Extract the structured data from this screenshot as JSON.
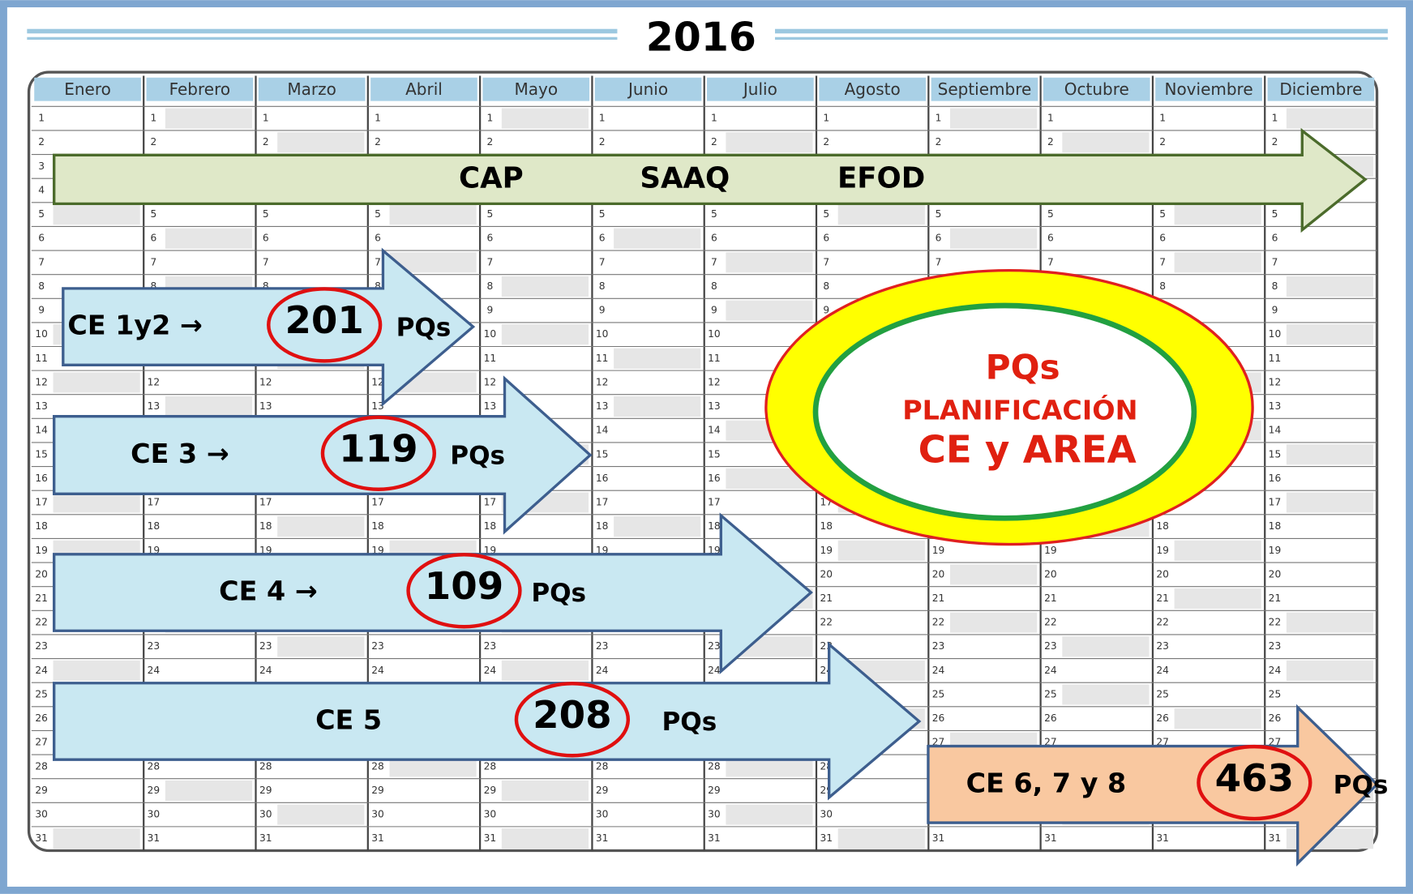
{
  "title": "2016",
  "months": [
    "Enero",
    "Febrero",
    "Marzo",
    "Abril",
    "Mayo",
    "Junio",
    "Julio",
    "Agosto",
    "Septiembre",
    "Octubre",
    "Noviembre",
    "Diciembre"
  ],
  "days": [
    1,
    2,
    3,
    4,
    5,
    6,
    7,
    8,
    9,
    10,
    11,
    12,
    13,
    14,
    15,
    16,
    17,
    18,
    19,
    20,
    21,
    22,
    23,
    24,
    25,
    26,
    27,
    28,
    29,
    30,
    31
  ],
  "top_arrow": {
    "labels": [
      "CAP",
      "SAAQ",
      "EFOD"
    ]
  },
  "arrows": [
    {
      "label": "CE 1y2 →",
      "count": "201",
      "unit": "PQs"
    },
    {
      "label": "CE 3 →",
      "count": "119",
      "unit": "PQs"
    },
    {
      "label": "CE 4 →",
      "count": "109",
      "unit": "PQs"
    },
    {
      "label": "CE 5",
      "count": "208",
      "unit": "PQs"
    },
    {
      "label": "CE 6, 7 y 8",
      "count": "463",
      "unit": "PQs"
    }
  ],
  "badge": {
    "line1": "PQs",
    "line2": "PLANIFICACIÓN",
    "line3": "CE y AREA"
  }
}
